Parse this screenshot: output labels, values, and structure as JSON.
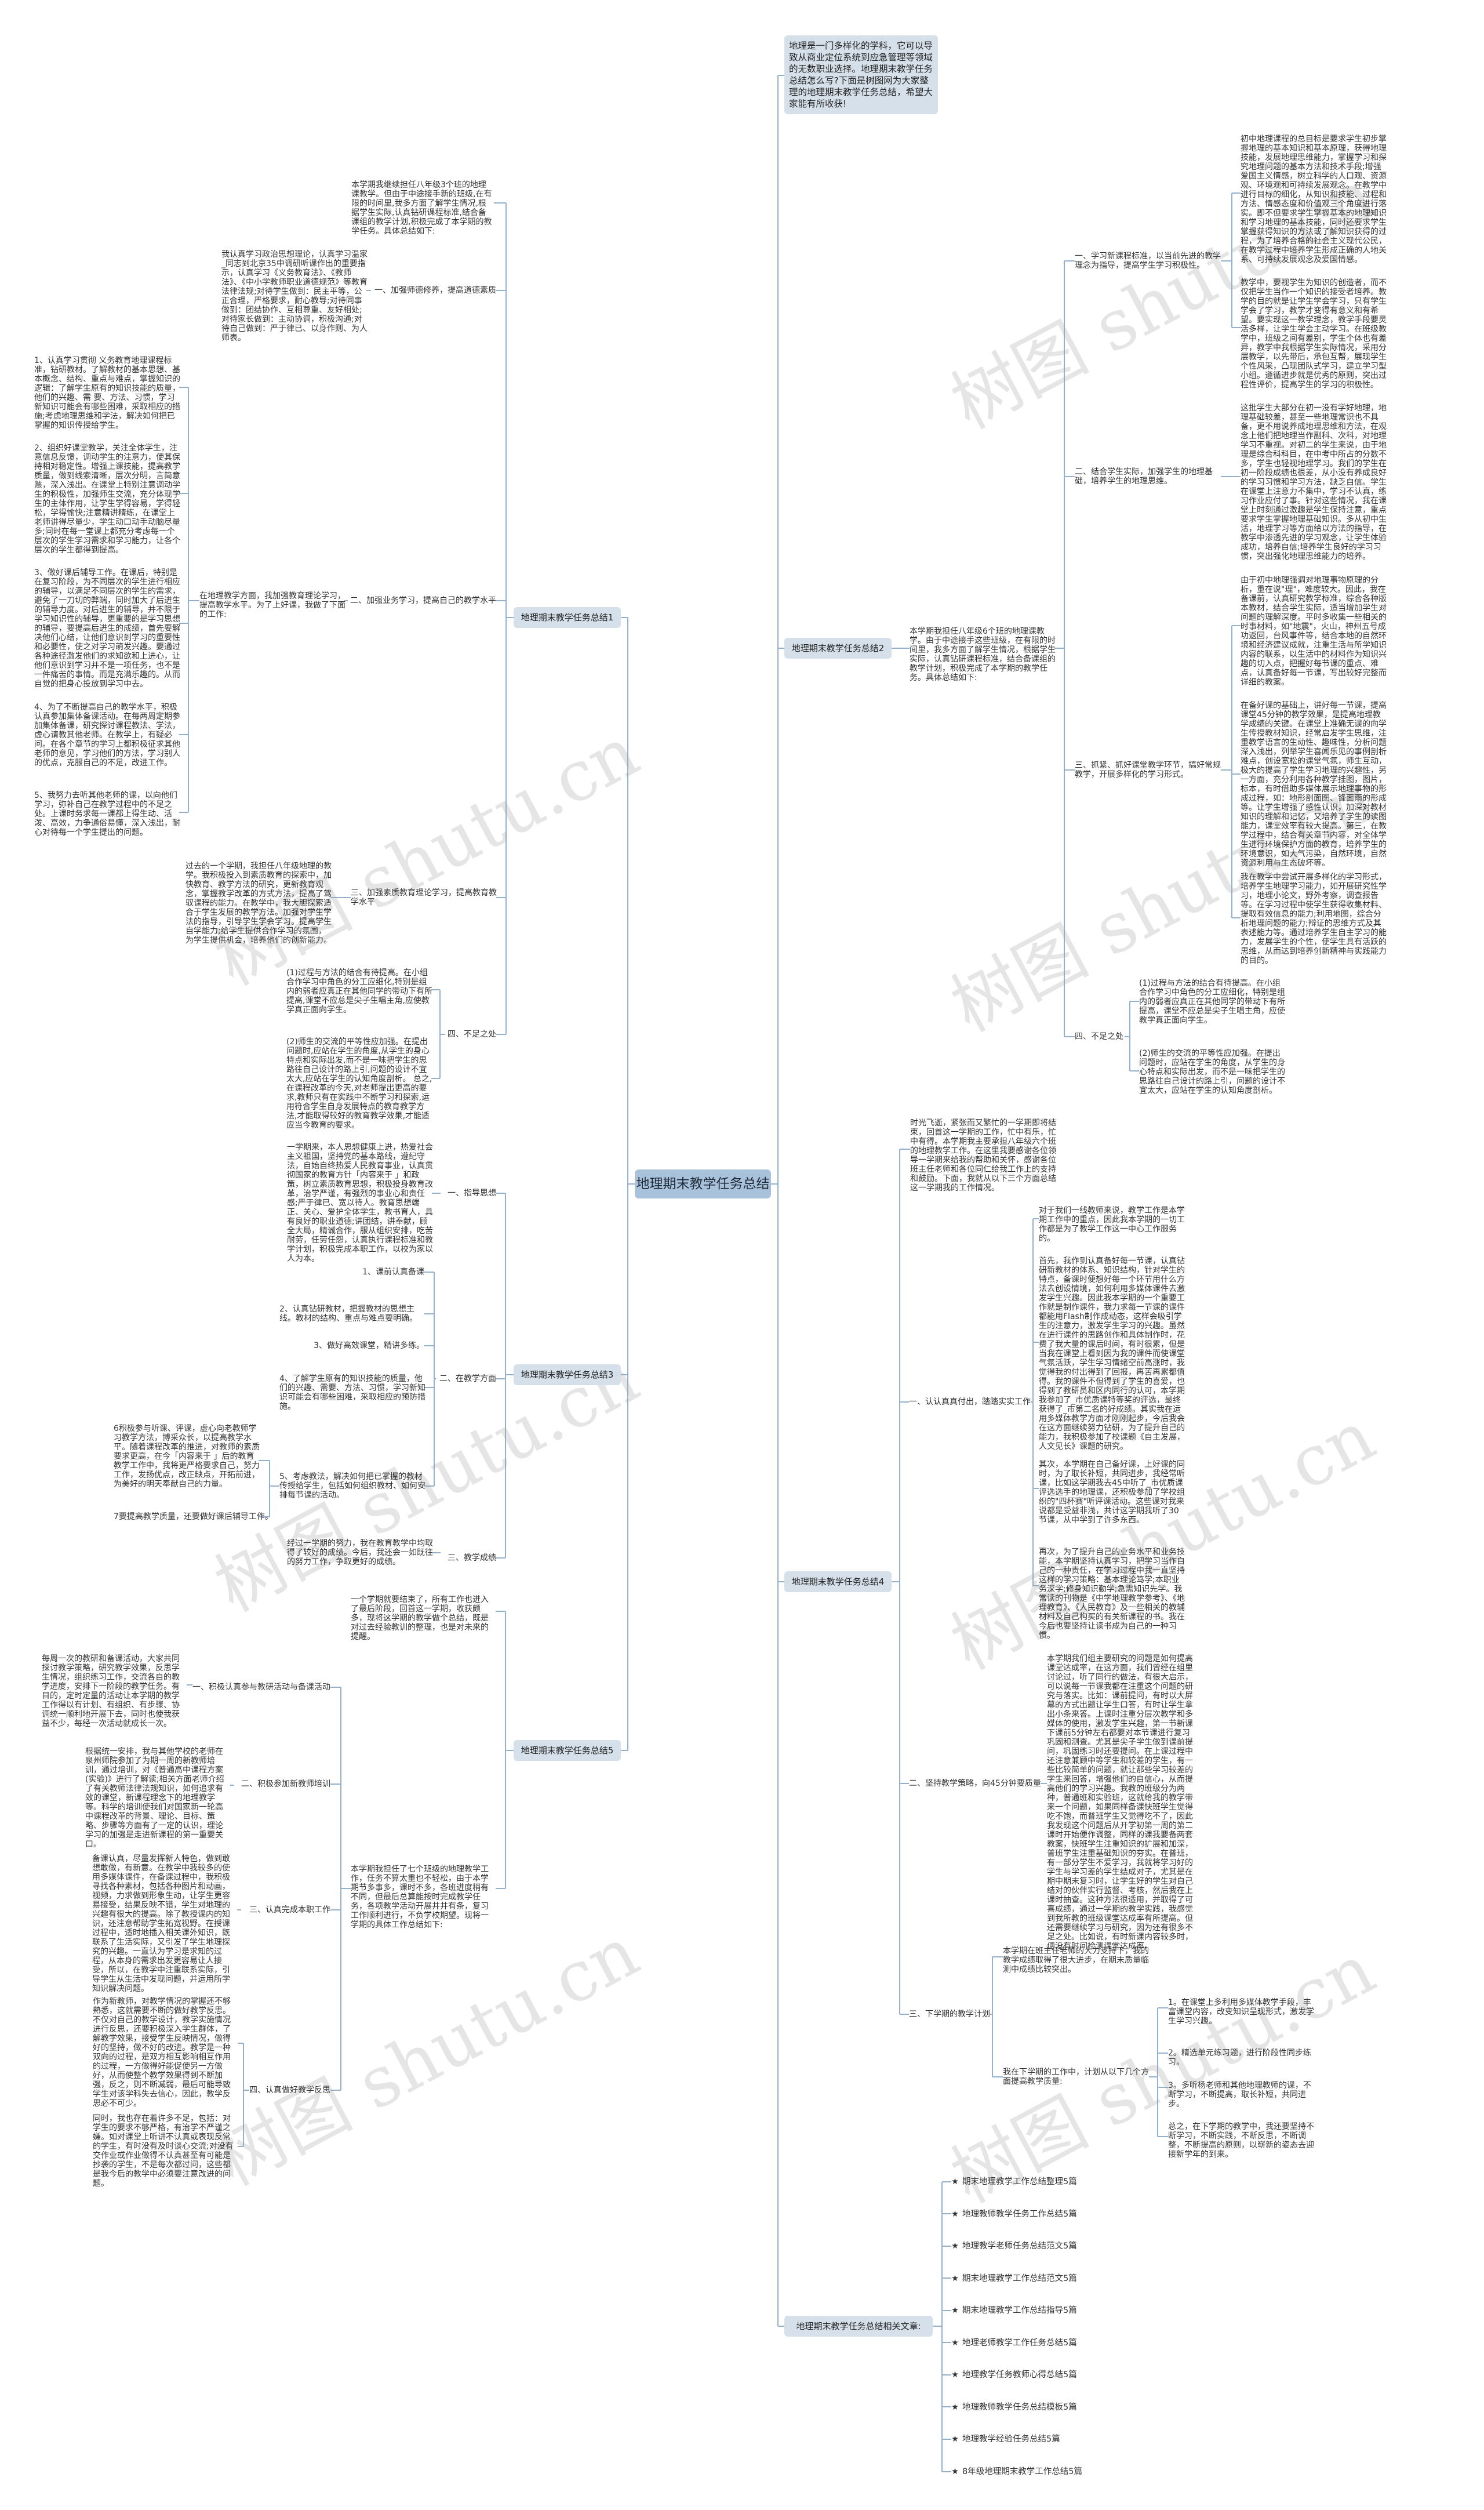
{
  "center": {
    "title": "地理期末教学任务总结"
  },
  "intro": "地理是一门多样化的学科，它可以导致从商业定位系统到应急管理等领域的无数职业选择。地理期末教学任务总结怎么写?下面是树图网为大家整理的地理期末教学任务总结，希望大家能有所收获!",
  "watermark": "树图 shutu.cn",
  "colors": {
    "center_node": "#a9c2dc",
    "branch_node": "#d5e0ea",
    "connector": "#93b1cc"
  },
  "summary1": {
    "title": "地理期末教学任务总结1",
    "intro": "本学期我继续担任八年级3个班的地理课教学。但由于中途接手新的班级,在有限的时间里,我多方面了解学生情况,根据学生实际,认真钻研课程标准,结合备课组的教学计划,积极完成了本学期的教学任务。具体总结如下:",
    "sections": [
      {
        "title": "一、加强师德修养，提高道德素质",
        "text": "我认真学习政治思想理论，认真学习温家_同志到北京35中调研听课作出的重要指示，认真学习《义务教育法》、《教师法》、《中小学教师职业道德规范》等教育法律法规;对待学生做到：民主平等，公正合理，严格要求，耐心教导;对待同事做到：团结协作、互相尊重、友好相处;对待家长做到：主动协调，积极沟通;对待自己做到：严于律已、以身作则、为人师表。"
      },
      {
        "title": "二、加强业务学习，提高自己的教学水平",
        "lead": "在地理教学方面，我加强教育理论学习，提高教学水平。为了上好课，我做了下面的工作:",
        "items": [
          "1、认真学习贯彻 义务教育地理课程标准，钻研教材。了解教材的基本思想、基本概念、结构、重点与难点，掌握知识的逻辑：了解学生原有的知识技能的质量，他们的兴趣、需 要、方法、习惯，学习新知识可能会有哪些困难，采取相应的措施;考虑地理思维和学法，解决如何把已掌握的知识传授给学生。",
          "2、组织好课堂教学，关注全体学生，注意信息反馈，调动学生的注意力，使其保持相对稳定性。增强上课技能，提高教学质量，做到线索清晰，层次分明，言简意赅，深入浅出。在课堂上特别注意调动学生的积极性，加强师生交流，充分体现学生的主体作用，让学生学得容易，学得轻松，学得愉快;注意精讲精练，在课堂上老师讲得尽量少，学生动口动手动脑尽量多;同时在每一堂课上都充分考虑每一个层次的学生学习需求和学习能力，让各个层次的学生都得到提高。",
          "3、做好课后辅导工作。在课后，特别是在复习阶段，为不同层次的学生进行相应的辅导，以满足不同层次的学生的需求，避免了一刀切的弊端，同时加大了后进生的辅导力度。对后进生的辅导，并不限于学习知识性的辅导，更重要的是学习思想的辅导，要提高后进生的成绩，首先要解决他们心结，让他们意识到学习的重要性和必要性，使之对学习萌发兴趣。要通过各种途径激发他们的求知欲和上进心，让他们意识到学习并不是一项任务，也不是一件痛苦的事情。而是充满乐趣的。从而自觉的把身心投放到学习中去。",
          "4、为了不断提高自己的教学水平，积极认真参加集体备课活动。在每两周定期参加集体备课，研究探讨课程教法、学法，虚心请教其他老师。在教学上，有疑必问。在各个章节的学习上都积极征求其他老师的意见，学习他们的方法，学习别人的优点，克服自己的不足，改进工作。",
          "5、我努力去听其他老师的课，以向他们学习，弥补自己在教学过程中的不足之处。上课时务求每一课都上得生动、活泼、高效，力争通俗易懂，深入浅出，耐心对待每一个学生提出的问题。"
        ]
      },
      {
        "title": "三、加强素质教育理论学习，提高教育教学水平",
        "text": "过去的一个学期，我担任八年级地理的教学。我积极投入到素质教育的探索中，加快教育、教学方法的研究，更新教育观念，掌握教学改革的方式方法，提高了驾驭课程的能力。在教学中，我大胆探索适合于学生发展的教学方法。加强对学生学法的指导，引导学生学会学习。提高学生自学能力;给学生提供合作学习的氛围，为学生提供机会，培养他们的创新能力。"
      },
      {
        "title": "四、不足之处",
        "paragraphs": [
          "(1)过程与方法的结合有待提高。在小组合作学习中角色的分工应细化,特别是组内的弱者应真正在其他同学的带动下有所提高,课堂不应总是尖子生唱主角,应使教学真正面向学生。",
          "(2)师生的交流的平等性应加强。在提出问题时,应站在学生的角度,从学生的身心特点和实际出发,而不是一味把学生的思路往自己设计的路上引,问题的设计不宜太大,应站在学生的认知角度剖析。 总之,在课程改革的今天,对老师提出更高的要求,教师只有在实践中不断学习和探索,运用符合学生自身发展特点的教育教学方法,才能取得较好的教育教学效果,才能适应当今教育的要求。"
        ]
      }
    ]
  },
  "summary2": {
    "title": "地理期末教学任务总结2",
    "intro": "本学期我担任八年级6个班的地理课教学。由于中途接手这些班级，在有限的时间里，我多方面了解学生情况，根据学生实际，认真钻研课程标准，结合备课组的教学计划，积极完成了本学期的教学任务。具体总结如下:",
    "sections": [
      {
        "title": "一、学习新课程标准，以当前先进的教学理念为指导，提高学生学习积极性。",
        "paragraphs": [
          "初中地理课程的总目标是要求学生初步掌握地理的基本知识和基本原理，获得地理技能，发展地理思维能力，掌握学习和探究地理问题的基本方法和技术手段;增强爱国主义情感，树立科学的人口观、资源观、环境观和可持续发展观念。在教学中进行目标的细化，从知识和技能、过程和方法、情感态度和价值观三个角度进行落实。即不但要求学生掌握基本的地理知识和学习地理的基本技能，同时还要求学生掌握获得知识的方法或了解知识获得的过程，为了培养合格的社会主义现代公民，在教学过程中培养学生形成正确的人地关系、可持续发展观念及爱国情感。",
          "教学中，要视学生为知识的创造者，而不仅把学生当作一个知识的接受者培养。教学的目的就是让学生学会学习，只有学生学会了学习，教学才变得有意义和有希望。要实现这一教学理念，教学手段要灵活多样，让学生学会主动学习。在班级教学中，班级之间有差别，学生个体也有差异，教学中我根据学生实际情况，采用分层教学，以先带后，承包互帮，展现学生个性风采，凸现团队式学习，建立学习型小组。遵循进步就是优秀的原则，突出过程性评价，提高学生的学习的积极性。"
        ]
      },
      {
        "title": "二、结合学生实际，加强学生的地理基础，培养学生的地理思维。",
        "paragraphs": [
          "这批学生大部分在初一没有学好地理，地理基础较差，甚至一些地理常识也不具备，更不用说养成地理思维和方法，在观念上他们把地理当作副科、次科，对地理学习不重视。对初二的学生来说，由于地理是综合科科目，在中考中所占的分数不多，学生也轻视地理学习。我们的学生在初一阶段成绩也很差，从小没有养成良好的学习习惯和学习方法，缺乏自信。学生在课堂上注意力不集中，学习不认真，练习作业应付了事。针对这些情况，我在课堂上时刻通过激趣是学生保持注意，重点要求学生掌握地理基础知识。多从初中生活，地理学习等方面给以方法的指导，在教学中渗透先进的学习观念，让学生体验成功，培养自信;培养学生良好的学习习惯，突出强化地理思维能力的培养。"
        ]
      },
      {
        "title": "三、抓紧、抓好课堂教学环节，搞好常规教学，开展多样化的学习形式。",
        "paragraphs": [
          "由于初中地理强调对地理事物原理的分析，重在说\"理\"，难度较大。因此，我在备课前，认真研究教学标准，综合各种版本教材，结合学生实际，适当增加学生对问题的理解深度。平时多收集一些相关的时事材料，如\"地震\"，火山，神州五号成功返回，台风事件等，结合本地的自然环境和经济建议成就，注重生活与所学知识内容的联系，以生活中的材料作为知识兴趣的切入点，把握好每节课的重点、难点，认真备好每一节课，写出较好完整而详细的教案。",
          "在备好课的基础上，讲好每一节课，提高课堂45分钟的教学效果，是提高地理教学成绩的关键。在课堂上准确无误的向学生传授教材知识，经常启发学生思维，注重教学语言的生动性、趣味性，分析问题深入浅出，列举学生喜闻乐见的事例剖析难点，创设宽松的课堂气氛，师生互动，极大的提高了学生学习地理的兴趣性，另一方面，充分利用各种教学挂图，图片，标本，有时借助多媒体展示地理事物的形成过程，如：地形剖面图、锋面雨的形成等。让学生增强了感性认识，加深对教材知识的理解和记忆，又培养了学生的读图能力，课堂效率有较大提高。第三，在教学过程中，结合有关章节内容，对全体学生进行环境保护方面的教育，培养学生的环境意识，如大气污染，自然环境，自然资源利用与生态破坏等。",
          "我在教学中尝试开展多样化的学习形式，培养学生地理学习能力，如开展研究性学习，地理小论文，野外考察，调查报告等。在学习过程中使学生获得收集材料、提取有效信息的能力;利用地图，综合分析地理问题的能力;辩证的思维方式及其表述能力等。通过培养学生自主学习的能力，发展学生的个性，使学生具有活跃的思维，从而达到培养创新精神与实践能力的目的。"
        ]
      },
      {
        "title": "四、不足之处",
        "paragraphs": [
          "(1)过程与方法的结合有待提高。在小组合作学习中角色的分工应细化，特别是组内的弱者应真正在其他同学的带动下有所提高，课堂不应总是尖子生唱主角，应使教学真正面向学生。",
          "(2)师生的交流的平等性应加强。在提出问题时，应站在学生的角度，从学生的身心特点和实际出发，而不是一味把学生的思路往自己设计的路上引，问题的设计不宜太大，应站在学生的认知角度剖析。"
        ]
      }
    ]
  },
  "summary3": {
    "title": "地理期末教学任务总结3",
    "sections": [
      {
        "title": "一、指导思想",
        "text": "一学期来，本人思想健康上进，热爱社会主义祖国，坚持党的基本路线，遵纪守法，自始自终热爱人民教育事业，认真贯彻国家的教育方针「内容来于 」和政策，树立素质教育思想，积极投身教育改革，治学严谨，有强烈的事业心和责任感;严于律已、宽以待人。教育思想端正、关心、爱护全体学生，教书育人，具有良好的职业道德;讲团结，讲奉献，顾全大局，精诚合作，服从组织安排，吃苦耐劳，任劳任怨，认真执行课程标准和教学计划，积极完成本职工作，以校为家以人为本。"
      },
      {
        "title": "二、在教学方面",
        "items": [
          "1、课前认真备课",
          "2、认真钻研教材，把握教材的思想主线。教材的结构、重点与难点要明确。",
          "3、做好高效课堂，精讲多练。",
          "4、了解学生原有的知识技能的质量，他们的兴趣、需要、方法、习惯，学习新知识可能会有哪些困难，采取相应的预防措施。",
          "5、考虑教法，解决如何把已掌握的教材传授给学生，包括如何组织教材、如何安排每节课的活动。"
        ],
        "subitems": [
          "6积极参与听课、评课，虚心向老教师学习教学方法，博采众长，以提高教学水平。随着课程改革的推进，对教师的素质要求更高，在今「内容来于 」后的教育教学工作中，我将更严格要求自己，努力工作，发扬优点，改正缺点，开拓前进，为美好的明天奉献自己的力量。",
          "7要提高教学质量，还要做好课后辅导工作。"
        ]
      },
      {
        "title": "三、教学成绩",
        "text": "经过一学期的努力，我在教育教学中均取得了较好的成绩。今后，我还会一如既往的努力工作，争取更好的成绩。"
      }
    ]
  },
  "summary4": {
    "title": "地理期末教学任务总结4",
    "intro": "时光飞逝，紧张而又繁忙的一学期即将结束，回首这一学期的工作，忙中有乐，忙中有得。本学期我主要承担八年级六个班的地理教学工作。在这里我要感谢各位领导一学期来给我的帮助和关怀，感谢各位班主任老师和各位同仁给我工作上的支持和鼓励。下面，我就从以下三个方面总结这一学期我的工作情况。",
    "sections": [
      {
        "title": "一、认认真真付出，踏踏实实工作",
        "paragraphs": [
          "对于我们一线教师来说，教学工作是本学期工作中的重点，因此我本学期的一切工作都是为了教学工作这一中心工作服务的。",
          "首先，我作到认真备好每一节课，认真钻研新教材的体系、知识结构，针对学生的特点，备课时便想好每一个环节用什么方法去创设情境，如何利用多媒体课件去激发学生兴趣。因此我本学期的一个重要工作就是制作课件，我力求每一节课的课件都能用Flash制作成动态，这样会吸引学生的注意力，激发学生学习的兴趣。虽然在进行课件的思路创作和具体制作时，花费了我大量的课后时间，有时很累，但是当我在课堂上看到因为我的课件而使课堂气氛活跃，学生学习情绪空前高涨时，我觉得我的付出得到了回报，再苦再累都值得。我的课件不但得到了学生的喜爱，也得到了教研员和区内同行的认可，本学期我参加了_市优质课特等奖的评选，最终获得了_市第二名的好成绩。其实我在运用多媒体教学方面才刚刚起步，今后我会在这方面继续努力钻研，为了提升自己的能力，我积极参加了校课题《自主发展，人文见长》课题的研究。",
          "其次，本学期在自己备好课，上好课的同时，为了取长补短，共同进步，我经常听课，比如这学期我去45中听了_市优质课评选选手的地理课，还积极参加了学校组织的\"四杯赛\"听评课活动。这些课对我来说都是受益非浅，共计这学期我听了30节课，从中学到了许多东西。",
          "再次，为了提升自己的业务水平和业务技能，本学期坚持认真学习，把学习当作自己的一种责任，在学习过程中我一直坚持这样的学习策略：基本理论笃学;本职业务深学;修身知识勤学;急需知识先学。我常读的刊物是《中学地理教学参考》、《地理教育》、《人民教育》及一些相关的教辅材料及自己构买的有关新课程的书。我在今后也要坚持让读书成为自己的一种习惯。"
        ]
      },
      {
        "title": "二、坚持教学策略，向45分钟要质量",
        "text": "本学期我们组主要研究的问题是如何提高课堂达成率，在这方面，我们曾经在组里讨论过，听了同行的做法，有很大启示，可以说每一节课我都在注重这个问题的研究与落实。比如：课前提问，有时以大屏幕的方式出题让学生口答，有时让学生拿出小条来答。上课时注重分层次教学和多媒体的使用，激发学生兴趣，第一节新课下课前5分钟左右都要对本节课进行复习巩固和测查。尤其是尖子学生做到课前提问，巩固练习时还要提问。在上课过程中还注意兼顾中等学生和较差的学生，有一些比较简单的问题，就让那些学习较差的学生来回答，增强他们的自信心，从而提高他们的学习兴趣。我教的班级分为两种，普通班和实验班，这就给我的教学带来一个问题，如果同样备课快班学生觉得吃不饱，而普班学生又觉得吃不了，因此我发现这个问题后从开学初第一周的第二课时开始便作调整，同样的课我要备两套教案，快班学生注重知识的扩展和加深，普班学生注重基础知识的夯实。在普班，有一部分学生不爱学习，我就将学习好的学生与学习差的学生结成对子，尤其是在期中期末复习时，让学生好的学生对自己结对的伙伴实行监督、考核，然后我在上课时抽查。这种方法很适用，并取得了可喜成绩，通过一学期的教学实践，我感觉到我所教的班级课堂达成率有所提高。但还需要继续学习与研究，因为还有很多不足之处。比如说，有时新课内容较多时，便没有时间检测课堂达成率。"
      },
      {
        "title": "三、下学期的教学计划",
        "result": "本学期在班主任老师的大力支持下，我的教学成绩取得了很大进步，在期末质量临测中成绩比较突出。",
        "lead": "我在下学期的工作中，计划从以下几个方面提高教学质量:",
        "items": [
          "1。在课堂上多利用多媒体教学手段，丰富课堂内容，改变知识呈现形式，激发学生学习兴趣。",
          "2。精选单元练习题，进行阶段性同步练习。",
          "3。多听杨老师和其他地理教师的课，不断学习，不断提高，取长补短，共同进步。",
          "总之，在下学期的教学中，我还要坚持不断学习，不断实践，不断反思，不断调整，不断提高的原则，以崭新的姿态去迎接新学年的到来。"
        ]
      }
    ]
  },
  "summary5": {
    "title": "地理期末教学任务总结5",
    "intro": "一个学期就要结束了，所有工作也进入了最后阶段，回首这一学期，收获颇多，现将这学期的教学做个总结，既是对过去经验教训的整理，也是对未来的提醒。",
    "lead": "本学期我担任了七个班级的地理教学工作，任务不算太重也不轻松，由于本学期节多事多，课时不多，各班进度稍有不同，但最后总算能按时完成教学任务，各项教学活动开展井井有条，复习工作顺利进行，不负学校期望。现将一学期的具体工作总结如下:",
    "sections": [
      {
        "title": "一、积极认真参与教研活动与备课活动",
        "text": "每周一次的教研和备课活动，大家共同探讨教学策略，研究教学效果，反思学生情况，组织练习工作，交流各自的教学进度，安排下一阶段的教学任务。有目的，定时定量的活动让本学期的教学工作得以有计划、有组织、有步骤、协调统一顺利地开展下去，同时也使我获益不少，每经一次活动就成长一次。"
      },
      {
        "title": "二、积极参加新教师培训",
        "text": "根据统一安排，我与其他学校的老师在泉州师院参加了为期一周的新教师培训，通过培训，对《普通高中课程方案(实验)》进行了解读;相关方面老师介绍了有关教师法律法规知识，如何追求有效的课堂，新课程理念下的地理教学等。科学的培训使我们对国家新一轮高中课程改革的背景、理论、目标、策略、步骤等方面有了一定的认识，理论学习的加强是走进新课程的第一重要关口。"
      },
      {
        "title": "三、认真完成本职工作",
        "text": "备课认真，尽量发挥新人特色，做到敢想敢做，有新意。在教学中我较多的使用多媒体课件，在备课过程中，我积极寻找各种素材，包括各种图片和动画，视频，力求做到形象生动，让学生更容易接受，结果反映不错，学生对地理的兴趣有很大的提高。除了教授课内的知识，还注意帮助学生拓宽视野。在授课过程中，适时地插入相关课外知识，既联系了生活实际，又引发了学生地理探究的兴趣。一直认为学习是求知的过程，从本身的需求出发更容易让人接受，所以，在教学中注重联系实际，引导学生从生活中发现问题，并运用所学知识解决问题。"
      },
      {
        "title": "四、认真做好教学反思",
        "paragraphs": [
          "作为新教师，对教学情况的掌握还不够熟悉，这就需要不断的做好教学反思。不仅对自己的教学设计，教学实施情况进行反思，还要积极深入学生群体，了解教学效果，接受学生反映情况，做得好的坚持，做不好的改进。教学是一种双向的过程，是双方相互影响相互作用的过程，一方做得好能促使另一方做好，从而使整个教学效果得到不断加强，反之，则不断减弱，最后可能导致学生对该学科失去信心，因此，教学反思必不可少。",
          "同时，我也存在着许多不足，包括：对学生的要求不够严格，有治学不严谨之嫌。如对课堂上听讲不认真或表现反常的学生，有时没有及时谈心交流;对没有交作业或作业做得不认真甚至有可能是抄袭的学生，不是每次都过问，这些都是我今后的教学中必须要注意改进的问题。"
        ]
      }
    ]
  },
  "related": {
    "title": "地理期末教学任务总结相关文章:",
    "bullet": "★",
    "items": [
      "期末地理教学工作总结整理5篇",
      "地理教师教学任务工作总结5篇",
      "地理教学老师任务总结范文5篇",
      "期末地理教学工作总结范文5篇",
      "期末地理教学工作总结指导5篇",
      "地理老师教学工作任务总结5篇",
      "地理教学任务教师心得总结5篇",
      "地理教师教学任务总结模板5篇",
      "地理教学经验任务总结5篇",
      "8年级地理期末教学工作总结5篇"
    ]
  }
}
